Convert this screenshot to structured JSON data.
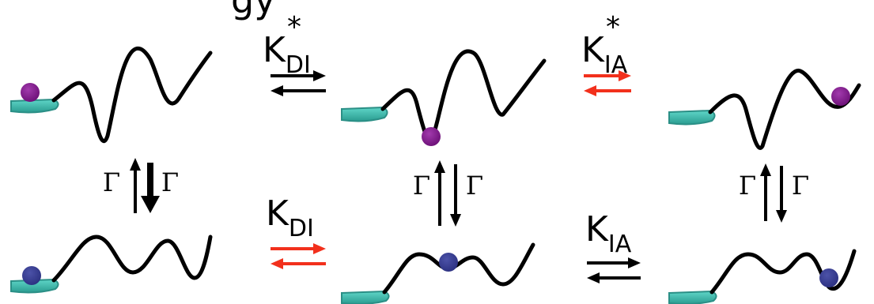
{
  "header_fragment": "gy",
  "colors": {
    "curve": "#000000",
    "surface": "#3fc3b5",
    "particle_excited": "#7e168a",
    "particle_ground": "#353a8e",
    "arrow_black": "#000000",
    "arrow_red": "#f2301c"
  },
  "states": {
    "excited": [
      {
        "id": "excited-donor",
        "particle": "excited"
      },
      {
        "id": "excited-intermediate",
        "particle": "excited"
      },
      {
        "id": "excited-acceptor",
        "particle": "excited"
      }
    ],
    "ground": [
      {
        "id": "ground-donor",
        "particle": "ground"
      },
      {
        "id": "ground-intermediate",
        "particle": "ground"
      },
      {
        "id": "ground-acceptor",
        "particle": "ground"
      }
    ]
  },
  "rates": {
    "k_di_star": {
      "symbol": "K",
      "subscript": "DI",
      "superscript": "*",
      "arrow_color": "arrow_black"
    },
    "k_ia_star": {
      "symbol": "K",
      "subscript": "IA",
      "superscript": "*",
      "arrow_color": "arrow_red"
    },
    "k_di": {
      "symbol": "K",
      "subscript": "DI",
      "arrow_color": "arrow_red"
    },
    "k_ia": {
      "symbol": "K",
      "subscript": "IA",
      "arrow_color": "arrow_black"
    },
    "gamma": "Γ"
  }
}
